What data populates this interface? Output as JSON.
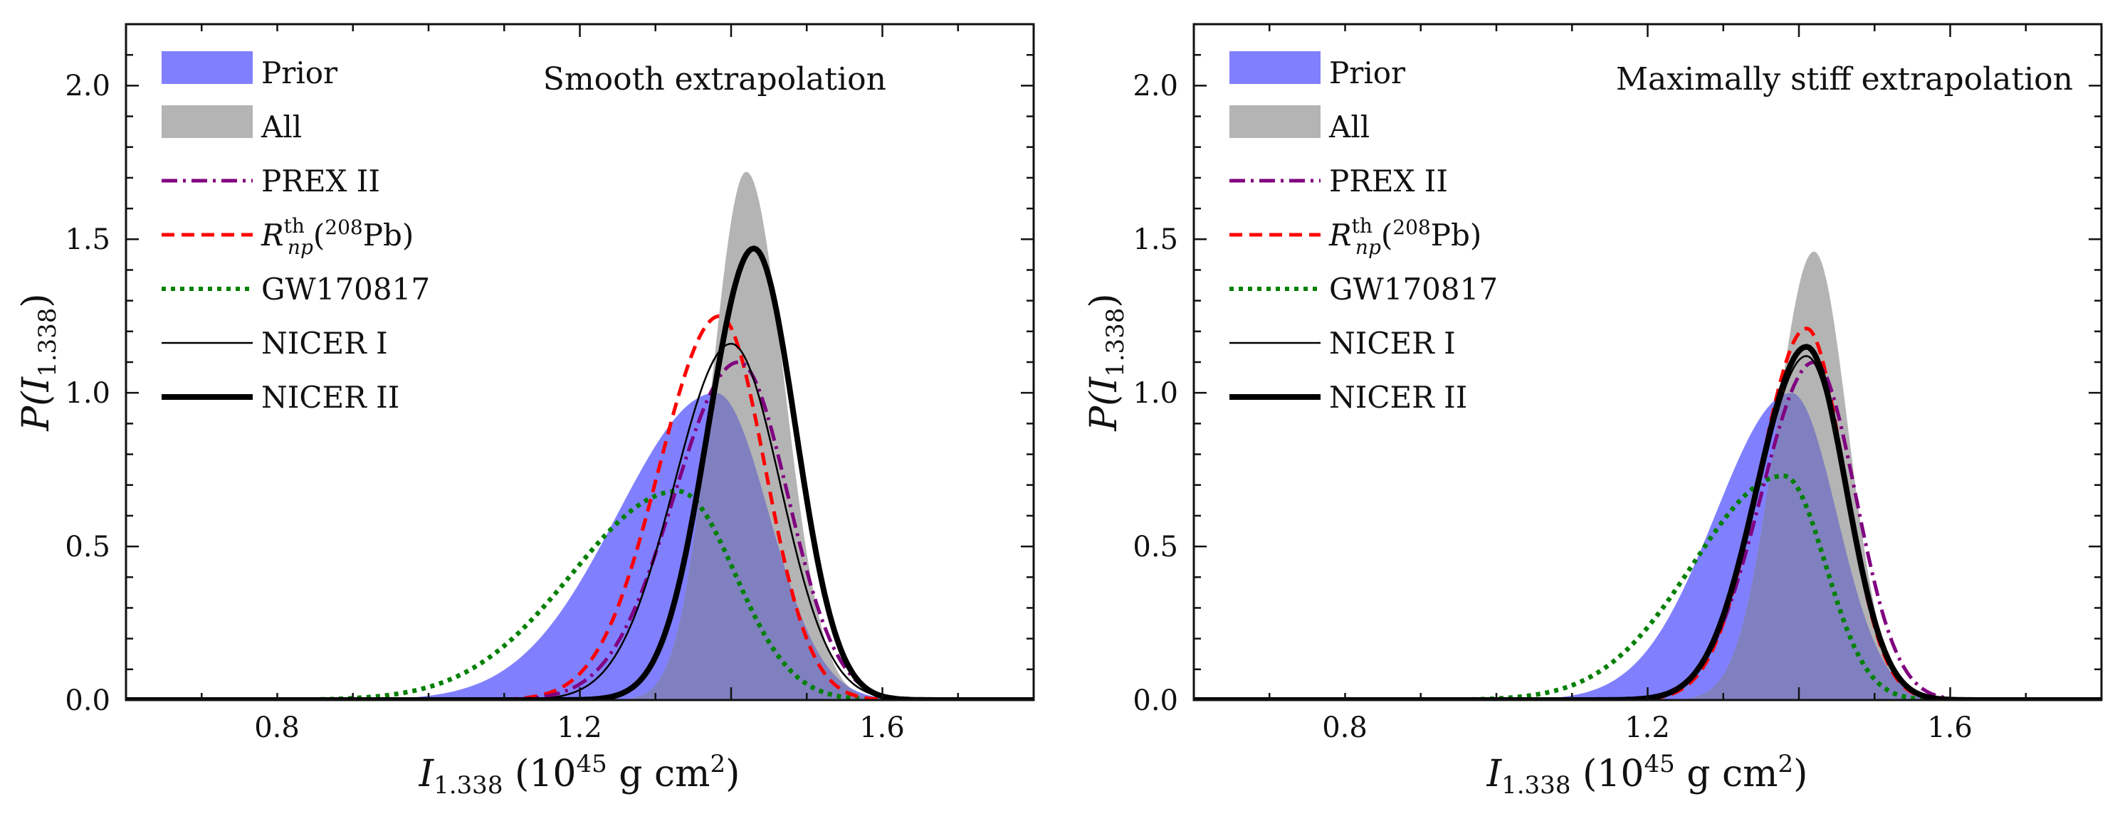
{
  "chart_data": [
    {
      "type": "area",
      "title": "Smooth extrapolation",
      "xlabel": "I_{1.338} (10^{45} g cm^{2})",
      "ylabel": "P(I_{1.338})",
      "xlim": [
        0.6,
        1.8
      ],
      "ylim": [
        0.0,
        2.2
      ],
      "xticks": [
        "0.8",
        "1.2",
        "1.6"
      ],
      "yticks": [
        "0.0",
        "0.5",
        "1.0",
        "1.5",
        "2.0"
      ],
      "legend_position": "top-left",
      "series": [
        {
          "name": "Prior",
          "style": "filled",
          "color": "#8080ff",
          "peak_x": 1.38,
          "peak_y": 1.0,
          "sigma_left": 0.13,
          "sigma_right": 0.07
        },
        {
          "name": "All",
          "style": "filled",
          "color": "#b4b4b4",
          "peak_x": 1.42,
          "peak_y": 1.72,
          "sigma_left": 0.045,
          "sigma_right": 0.05
        },
        {
          "name": "PREX II",
          "style": "dashdot",
          "color": "#800080",
          "peak_x": 1.41,
          "peak_y": 1.1,
          "sigma_left": 0.085,
          "sigma_right": 0.065
        },
        {
          "name": "R_np^th(208Pb)",
          "style": "dashed",
          "color": "#ff0000",
          "peak_x": 1.385,
          "peak_y": 1.25,
          "sigma_left": 0.08,
          "sigma_right": 0.06
        },
        {
          "name": "GW170817",
          "style": "dotted",
          "color": "#008000",
          "peak_x": 1.33,
          "peak_y": 0.68,
          "sigma_left": 0.14,
          "sigma_right": 0.075
        },
        {
          "name": "NICER I",
          "style": "thin",
          "color": "#000000",
          "peak_x": 1.4,
          "peak_y": 1.16,
          "sigma_left": 0.075,
          "sigma_right": 0.065
        },
        {
          "name": "NICER II",
          "style": "thick",
          "color": "#000000",
          "peak_x": 1.43,
          "peak_y": 1.47,
          "sigma_left": 0.06,
          "sigma_right": 0.055
        }
      ]
    },
    {
      "type": "area",
      "title": "Maximally stiff extrapolation",
      "xlabel": "I_{1.338} (10^{45} g cm^{2})",
      "ylabel": "P(I_{1.338})",
      "xlim": [
        0.6,
        1.8
      ],
      "ylim": [
        0.0,
        2.2
      ],
      "xticks": [
        "0.8",
        "1.2",
        "1.6"
      ],
      "yticks": [
        "0.0",
        "0.5",
        "1.0",
        "1.5",
        "2.0"
      ],
      "legend_position": "top-left",
      "series": [
        {
          "name": "Prior",
          "style": "filled",
          "color": "#8080ff",
          "peak_x": 1.39,
          "peak_y": 1.0,
          "sigma_left": 0.1,
          "sigma_right": 0.06
        },
        {
          "name": "All",
          "style": "filled",
          "color": "#b4b4b4",
          "peak_x": 1.42,
          "peak_y": 1.46,
          "sigma_left": 0.05,
          "sigma_right": 0.045
        },
        {
          "name": "PREX II",
          "style": "dashdot",
          "color": "#800080",
          "peak_x": 1.42,
          "peak_y": 1.1,
          "sigma_left": 0.07,
          "sigma_right": 0.055
        },
        {
          "name": "R_np^th(208Pb)",
          "style": "dashed",
          "color": "#ff0000",
          "peak_x": 1.41,
          "peak_y": 1.21,
          "sigma_left": 0.062,
          "sigma_right": 0.05
        },
        {
          "name": "GW170817",
          "style": "dotted",
          "color": "#008000",
          "peak_x": 1.38,
          "peak_y": 0.73,
          "sigma_left": 0.12,
          "sigma_right": 0.055
        },
        {
          "name": "NICER I",
          "style": "thin",
          "color": "#000000",
          "peak_x": 1.41,
          "peak_y": 1.12,
          "sigma_left": 0.064,
          "sigma_right": 0.052
        },
        {
          "name": "NICER II",
          "style": "thick",
          "color": "#000000",
          "peak_x": 1.41,
          "peak_y": 1.15,
          "sigma_left": 0.065,
          "sigma_right": 0.052
        }
      ]
    }
  ],
  "legend_labels": {
    "prior": "Prior",
    "all": "All",
    "prex": "PREX II",
    "rnp_main": "R",
    "rnp_super": "th",
    "rnp_sub": "np",
    "rnp_open": "(",
    "rnp_iso": "208",
    "rnp_rest": "Pb)",
    "gw": "GW170817",
    "nicer1": "NICER I",
    "nicer2": "NICER II"
  },
  "axis_text": {
    "x_main": "I",
    "x_sub": "1.338",
    "x_units_open": " (10",
    "x_units_exp": "45",
    "x_units_rest": " g cm",
    "x_units_sq": "2",
    "x_units_close": ")",
    "y_main": "P(I",
    "y_sub": "1.338",
    "y_close": ")"
  },
  "colors": {
    "prior": "#8080ff",
    "all": "#b4b4b4",
    "overlap": "#8080c0",
    "prex": "#800080",
    "rnp": "#ff0000",
    "gw": "#008000",
    "nicer": "#000000"
  }
}
